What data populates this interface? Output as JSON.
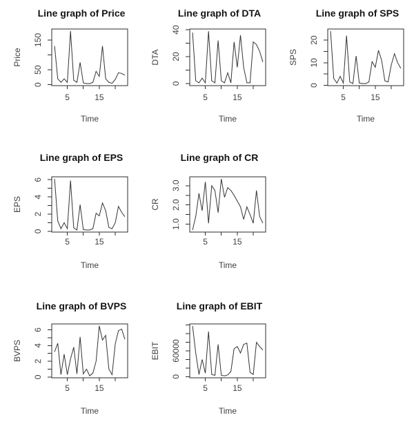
{
  "figure": {
    "background": "#ffffff",
    "line_color": "#333333",
    "axis_color": "#2b2b2b",
    "text_color": "#3f3f3f",
    "title_color": "#141414"
  },
  "chart_data": [
    {
      "type": "line",
      "title": "Line graph of Price",
      "xlabel": "Time",
      "ylabel": "Price",
      "x_start": 1,
      "values": [
        130,
        20,
        8,
        20,
        8,
        180,
        15,
        8,
        75,
        6,
        4,
        4,
        8,
        45,
        28,
        130,
        20,
        8,
        5,
        18,
        40,
        38,
        32
      ],
      "xlim": [
        0.12,
        23.88
      ],
      "ylim": [
        -3,
        187
      ],
      "x_ticks": [
        5,
        10,
        15,
        20
      ],
      "x_tick_labels": [
        "5",
        "",
        "15",
        ""
      ],
      "y_ticks": [
        0,
        50,
        100,
        150
      ],
      "y_tick_labels": [
        "0",
        "50",
        "",
        "150"
      ],
      "grid": false,
      "legend": null
    },
    {
      "type": "line",
      "title": "Line graph of DTA",
      "xlabel": "Time",
      "ylabel": "DTA",
      "x_start": 1,
      "values": [
        38,
        2,
        0.5,
        4,
        0.5,
        39,
        2,
        0.5,
        32,
        2,
        0.5,
        8,
        0.5,
        31,
        12,
        36,
        12,
        0.5,
        0.5,
        31,
        29,
        24,
        16
      ],
      "xlim": [
        0.12,
        23.88
      ],
      "ylim": [
        -1.6,
        40.6
      ],
      "x_ticks": [
        5,
        10,
        15,
        20
      ],
      "x_tick_labels": [
        "5",
        "",
        "15",
        ""
      ],
      "y_ticks": [
        0,
        10,
        20,
        30,
        40
      ],
      "y_tick_labels": [
        "0",
        "",
        "20",
        "",
        "40"
      ],
      "grid": false,
      "legend": null
    },
    {
      "type": "line",
      "title": "Line graph of SPS",
      "xlabel": "Time",
      "ylabel": "SPS",
      "x_start": 1,
      "values": [
        24,
        3,
        1,
        4,
        1,
        22,
        1.5,
        0.8,
        13,
        1,
        0.8,
        0.8,
        1.5,
        10.5,
        8,
        15.5,
        11,
        2,
        1.5,
        9,
        14,
        10,
        7.5
      ],
      "xlim": [
        0.12,
        23.88
      ],
      "ylim": [
        -0.13,
        24.93
      ],
      "x_ticks": [
        5,
        10,
        15,
        20
      ],
      "x_tick_labels": [
        "5",
        "",
        "15",
        ""
      ],
      "y_ticks": [
        0,
        5,
        10,
        15,
        20
      ],
      "y_tick_labels": [
        "0",
        "",
        "10",
        "",
        "20"
      ],
      "grid": false,
      "legend": null
    },
    {
      "type": "line",
      "title": "Line graph of EPS",
      "xlabel": "Time",
      "ylabel": "EPS",
      "x_start": 1,
      "values": [
        6.1,
        1.2,
        0.3,
        1.0,
        0.3,
        5.9,
        0.4,
        0.15,
        3.1,
        0.2,
        0.15,
        0.15,
        0.3,
        2.1,
        1.8,
        3.3,
        2.4,
        0.45,
        0.3,
        1.0,
        2.9,
        2.2,
        1.7
      ],
      "xlim": [
        0.12,
        23.88
      ],
      "ylim": [
        -0.09,
        6.34
      ],
      "x_ticks": [
        5,
        10,
        15,
        20
      ],
      "x_tick_labels": [
        "5",
        "",
        "15",
        ""
      ],
      "y_ticks": [
        0,
        1,
        2,
        3,
        4,
        5,
        6
      ],
      "y_tick_labels": [
        "0",
        "",
        "2",
        "",
        "4",
        "",
        "6"
      ],
      "grid": false,
      "legend": null
    },
    {
      "type": "line",
      "title": "Line graph of CR",
      "xlabel": "Time",
      "ylabel": "CR",
      "x_start": 1,
      "values": [
        0.7,
        1.4,
        2.6,
        1.7,
        3.2,
        1.05,
        3.0,
        2.75,
        1.6,
        3.35,
        2.4,
        2.9,
        2.75,
        2.5,
        2.2,
        1.9,
        1.25,
        1.9,
        1.5,
        1.05,
        2.75,
        1.4,
        1.05
      ],
      "xlim": [
        0.12,
        23.88
      ],
      "ylim": [
        0.59,
        3.46
      ],
      "x_ticks": [
        5,
        10,
        15,
        20
      ],
      "x_tick_labels": [
        "5",
        "",
        "15",
        ""
      ],
      "y_ticks": [
        1.0,
        1.5,
        2.0,
        2.5,
        3.0
      ],
      "y_tick_labels": [
        "1.0",
        "",
        "2.0",
        "",
        "3.0"
      ],
      "grid": false,
      "legend": null
    },
    {
      "type": "line",
      "title": "Line graph of BVPS",
      "xlabel": "Time",
      "ylabel": "BVPS",
      "x_start": 1,
      "values": [
        3.2,
        4.3,
        0.3,
        2.9,
        0.3,
        2.3,
        3.8,
        0.4,
        5.1,
        0.4,
        1.0,
        0.15,
        0.5,
        2.0,
        6.5,
        4.7,
        5.3,
        1.0,
        0.3,
        4.2,
        5.9,
        6.1,
        4.8
      ],
      "xlim": [
        0.12,
        23.88
      ],
      "ylim": [
        -0.1,
        6.75
      ],
      "x_ticks": [
        5,
        10,
        15,
        20
      ],
      "x_tick_labels": [
        "5",
        "",
        "15",
        ""
      ],
      "y_ticks": [
        0,
        1,
        2,
        3,
        4,
        5,
        6
      ],
      "y_tick_labels": [
        "0",
        "",
        "2",
        "",
        "4",
        "",
        "6"
      ],
      "grid": false,
      "legend": null
    },
    {
      "type": "line",
      "title": "Line graph of EBIT",
      "xlabel": "Time",
      "ylabel": "EBIT",
      "x_start": 1,
      "values": [
        118000,
        55000,
        5000,
        40000,
        8000,
        105000,
        5000,
        3000,
        75000,
        3000,
        2000,
        4000,
        12000,
        65000,
        70000,
        55000,
        75000,
        78000,
        10000,
        5000,
        80000,
        70000,
        62000
      ],
      "xlim": [
        0.12,
        23.88
      ],
      "ylim": [
        -2700,
        122700
      ],
      "x_ticks": [
        5,
        10,
        15,
        20
      ],
      "x_tick_labels": [
        "5",
        "",
        "15",
        ""
      ],
      "y_ticks": [
        0,
        20000,
        40000,
        60000,
        80000,
        100000,
        120000
      ],
      "y_tick_labels": [
        "0",
        "",
        "",
        "60000",
        "",
        "",
        ""
      ],
      "grid": false,
      "legend": null
    }
  ]
}
